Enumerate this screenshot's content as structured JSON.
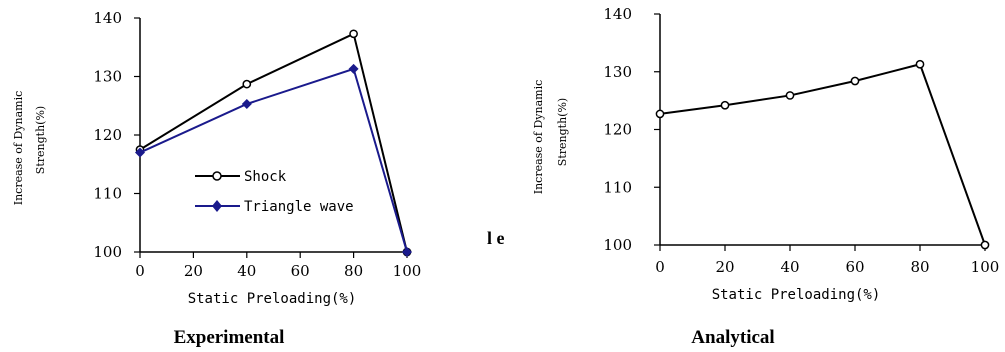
{
  "chart_data": [
    {
      "type": "line",
      "title": "",
      "caption": "Experimental",
      "xlabel": "Static Preloading(%)",
      "ylabel_line1": "Increase of Dynamic",
      "ylabel_line2": "Strength(%)",
      "x": [
        0,
        40,
        80,
        100
      ],
      "xticks": [
        0,
        20,
        40,
        60,
        80,
        100
      ],
      "yticks": [
        100,
        110,
        120,
        130,
        140
      ],
      "xlim": [
        0,
        100
      ],
      "ylim": [
        100,
        140
      ],
      "grid": false,
      "legend_position": "center",
      "series": [
        {
          "name": "Shock",
          "values": [
            117.5,
            128.7,
            137.3,
            100
          ],
          "color": "#000000",
          "marker": "open-circle"
        },
        {
          "name": "Triangle wave",
          "values": [
            117.0,
            125.3,
            131.3,
            100
          ],
          "color": "#1a1a8c",
          "marker": "filled-diamond"
        }
      ]
    },
    {
      "type": "line",
      "title": "",
      "caption": "Analytical",
      "xlabel": "Static Preloading(%)",
      "ylabel_line1": "Increase of Dynamic",
      "ylabel_line2": "Strength(%)",
      "x": [
        0,
        20,
        40,
        60,
        80,
        100
      ],
      "xticks": [
        0,
        20,
        40,
        60,
        80,
        100
      ],
      "yticks": [
        100,
        110,
        120,
        130,
        140
      ],
      "xlim": [
        0,
        100
      ],
      "ylim": [
        100,
        140
      ],
      "grid": false,
      "series": [
        {
          "values": [
            122.7,
            124.2,
            125.9,
            128.4,
            131.3,
            100
          ],
          "color": "#000000",
          "marker": "open-circle"
        }
      ]
    }
  ],
  "stray_text": "l e"
}
